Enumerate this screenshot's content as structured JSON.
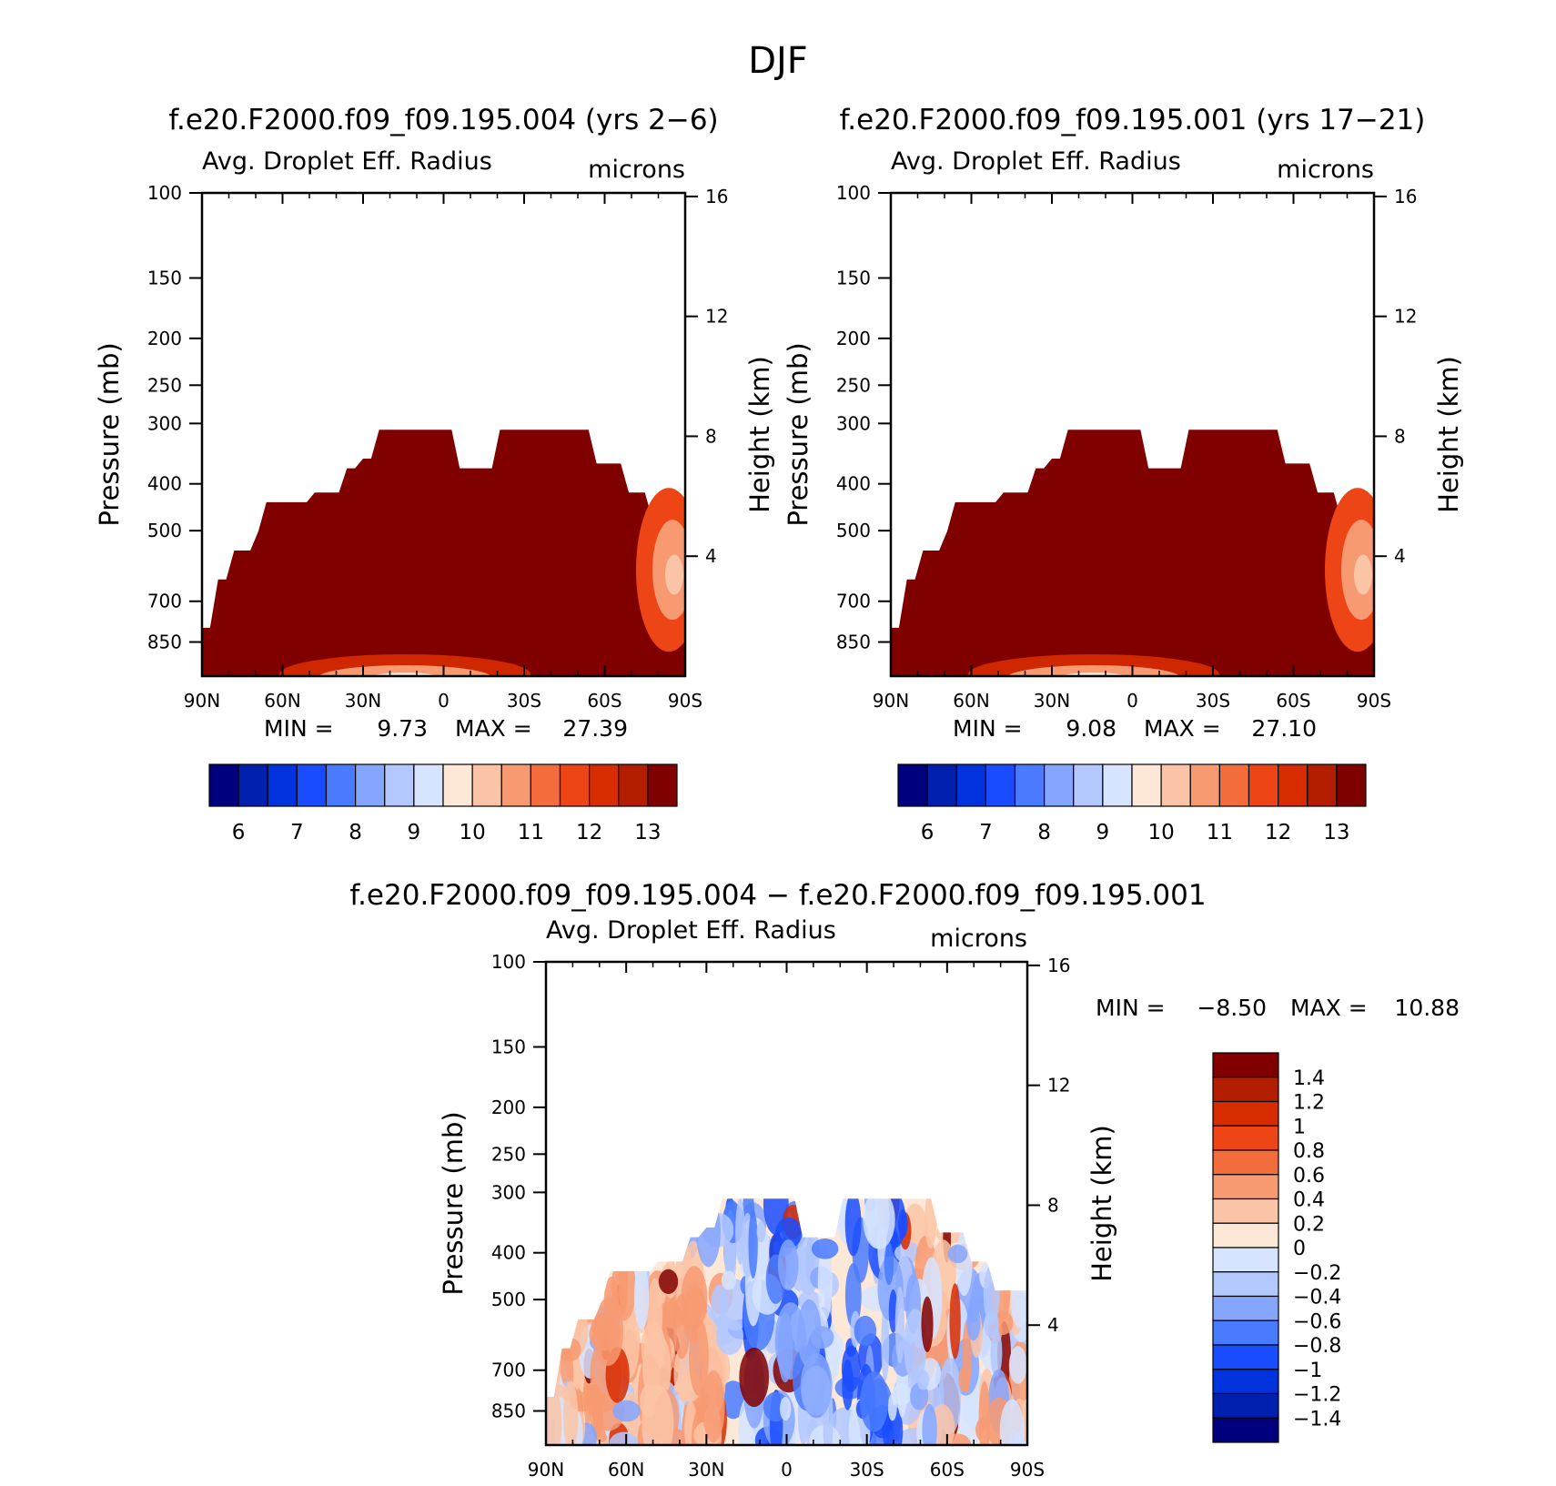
{
  "figure": {
    "title": "DJF",
    "diff_title": "f.e20.F2000.f09_f09.195.004 − f.e20.F2000.f09_f09.195.001"
  },
  "chart_data": [
    {
      "type": "heatmap",
      "title": "f.e20.F2000.f09_f09.195.004 (yrs 2−6)",
      "left_label": "Avg. Droplet Eff. Radius",
      "right_label": "microns",
      "ylabel": "Pressure (mb)",
      "y2label": "Height (km)",
      "x_ticks": [
        "90N",
        "60N",
        "30N",
        "0",
        "30S",
        "60S",
        "90S"
      ],
      "y_ticks": [
        "100",
        "150",
        "200",
        "250",
        "300",
        "400",
        "500",
        "700",
        "850"
      ],
      "y2_ticks": [
        "16",
        "12",
        "8",
        "4"
      ],
      "min_text": "MIN =",
      "min_value": "9.73",
      "max_text": "MAX =",
      "max_value": "27.39",
      "colorbar_labels": [
        "6",
        "7",
        "8",
        "9",
        "10",
        "11",
        "12",
        "13"
      ],
      "colors": [
        "#00007f",
        "#0020b0",
        "#0033dd",
        "#1a4cff",
        "#4a7bff",
        "#85a6ff",
        "#b3c8ff",
        "#d6e4ff",
        "#fde8d8",
        "#fbc4a6",
        "#f79a72",
        "#f26c3c",
        "#ee4516",
        "#d72c00",
        "#b41e00",
        "#800000"
      ],
      "ylim": [
        1000,
        100
      ],
      "xlim": [
        "90N",
        "90S"
      ]
    },
    {
      "type": "heatmap",
      "title": "f.e20.F2000.f09_f09.195.001 (yrs 17−21)",
      "left_label": "Avg. Droplet Eff. Radius",
      "right_label": "microns",
      "ylabel": "Pressure (mb)",
      "y2label": "Height (km)",
      "x_ticks": [
        "90N",
        "60N",
        "30N",
        "0",
        "30S",
        "60S",
        "90S"
      ],
      "y_ticks": [
        "100",
        "150",
        "200",
        "250",
        "300",
        "400",
        "500",
        "700",
        "850"
      ],
      "y2_ticks": [
        "16",
        "12",
        "8",
        "4"
      ],
      "min_text": "MIN =",
      "min_value": "9.08",
      "max_text": "MAX =",
      "max_value": "27.10",
      "colorbar_labels": [
        "6",
        "7",
        "8",
        "9",
        "10",
        "11",
        "12",
        "13"
      ],
      "ylim": [
        1000,
        100
      ],
      "xlim": [
        "90N",
        "90S"
      ]
    },
    {
      "type": "heatmap",
      "title": "",
      "left_label": "Avg. Droplet Eff. Radius",
      "right_label": "microns",
      "ylabel": "Pressure (mb)",
      "y2label": "Height (km)",
      "x_ticks": [
        "90N",
        "60N",
        "30N",
        "0",
        "30S",
        "60S",
        "90S"
      ],
      "y_ticks": [
        "100",
        "150",
        "200",
        "250",
        "300",
        "400",
        "500",
        "700",
        "850"
      ],
      "y2_ticks": [
        "16",
        "12",
        "8",
        "4"
      ],
      "min_text": "MIN =",
      "min_value": "−8.50",
      "max_text": "MAX =",
      "max_value": "10.88",
      "colorbar_labels": [
        "1.4",
        "1.2",
        "1",
        "0.8",
        "0.6",
        "0.4",
        "0.2",
        "0",
        "−0.2",
        "−0.4",
        "−0.6",
        "−0.8",
        "−1",
        "−1.2",
        "−1.4"
      ],
      "colors": [
        "#800000",
        "#b41e00",
        "#d72c00",
        "#ee4516",
        "#f26c3c",
        "#f79a72",
        "#fbc4a6",
        "#fde8d8",
        "#d6e4ff",
        "#b3c8ff",
        "#85a6ff",
        "#4a7bff",
        "#1a4cff",
        "#0033dd",
        "#0020b0",
        "#00007f"
      ],
      "ylim": [
        1000,
        100
      ],
      "xlim": [
        "90N",
        "90S"
      ]
    }
  ]
}
